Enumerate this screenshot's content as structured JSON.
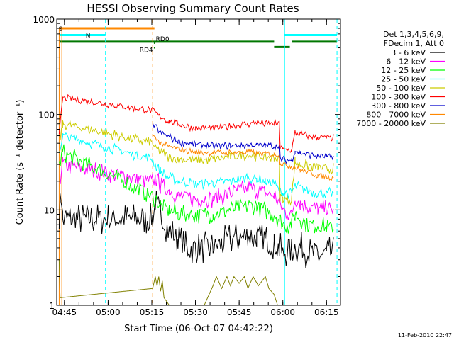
{
  "chart_data": {
    "type": "line",
    "title": "HESSI Observing Summary Count Rates",
    "xlabel": "Start Time (06-Oct-07 04:42:22)",
    "ylabel": "Count Rate (s⁻¹ detector⁻¹)",
    "yscale": "log",
    "ylim": [
      1,
      1000
    ],
    "y_ticks": [
      {
        "value": 1,
        "label": "1"
      },
      {
        "value": 10,
        "label": "10"
      },
      {
        "value": 100,
        "label": "100"
      },
      {
        "value": 1000,
        "label": "1000"
      }
    ],
    "x_ticks": [
      {
        "value": 4.75,
        "label": "04:45"
      },
      {
        "value": 5.0,
        "label": "05:00"
      },
      {
        "value": 5.25,
        "label": "05:15"
      },
      {
        "value": 5.5,
        "label": "05:30"
      },
      {
        "value": 5.75,
        "label": "05:45"
      },
      {
        "value": 6.0,
        "label": "06:00"
      },
      {
        "value": 6.25,
        "label": "06:15"
      }
    ],
    "xlim": [
      4.706,
      6.33
    ],
    "legend_header": [
      "Det 1,3,4,5,6,9,",
      "FDecim 1, Att 0"
    ],
    "legend_position": "right",
    "series": [
      {
        "name": "3 - 6 keV",
        "color": "#000000",
        "points": [
          [
            4.72,
            8
          ],
          [
            4.73,
            14
          ],
          [
            4.74,
            8
          ],
          [
            5.255,
            8
          ],
          [
            5.27,
            12
          ],
          [
            5.3,
            9
          ],
          [
            5.35,
            6
          ],
          [
            5.4,
            5
          ],
          [
            5.45,
            4
          ],
          [
            5.5,
            4
          ],
          [
            5.55,
            4
          ],
          [
            5.6,
            4
          ],
          [
            5.65,
            4.5
          ],
          [
            5.7,
            5
          ],
          [
            5.75,
            5
          ],
          [
            5.8,
            5.2
          ],
          [
            5.85,
            5
          ],
          [
            5.9,
            4.8
          ],
          [
            5.95,
            4.5
          ],
          [
            5.98,
            4
          ],
          [
            6.0,
            3.5
          ],
          [
            6.05,
            4
          ],
          [
            6.1,
            4
          ],
          [
            6.15,
            3.5
          ],
          [
            6.2,
            3.3
          ],
          [
            6.25,
            3.5
          ],
          [
            6.29,
            3.5
          ]
        ]
      },
      {
        "name": "6 - 12 keV",
        "color": "#ff00ff",
        "points": [
          [
            4.72,
            20
          ],
          [
            4.74,
            30
          ],
          [
            5.255,
            20
          ],
          [
            5.27,
            22
          ],
          [
            5.3,
            18
          ],
          [
            5.35,
            16
          ],
          [
            5.4,
            14
          ],
          [
            5.5,
            13
          ],
          [
            5.6,
            13
          ],
          [
            5.7,
            15
          ],
          [
            5.8,
            17
          ],
          [
            5.85,
            16
          ],
          [
            5.9,
            15
          ],
          [
            5.95,
            14
          ],
          [
            5.98,
            12
          ],
          [
            6.0,
            10
          ],
          [
            6.05,
            9
          ],
          [
            6.07,
            13
          ],
          [
            6.1,
            12
          ],
          [
            6.15,
            11
          ],
          [
            6.2,
            10
          ],
          [
            6.25,
            10
          ],
          [
            6.29,
            10
          ]
        ]
      },
      {
        "name": "12 - 25 keV",
        "color": "#00ff00",
        "points": [
          [
            4.72,
            30
          ],
          [
            4.74,
            40
          ],
          [
            5.255,
            14
          ],
          [
            5.27,
            13
          ],
          [
            5.3,
            11
          ],
          [
            5.35,
            10
          ],
          [
            5.4,
            9
          ],
          [
            5.5,
            9
          ],
          [
            5.6,
            9
          ],
          [
            5.7,
            10
          ],
          [
            5.8,
            11
          ],
          [
            5.85,
            11
          ],
          [
            5.9,
            10
          ],
          [
            5.95,
            9
          ],
          [
            5.98,
            8
          ],
          [
            6.0,
            7
          ],
          [
            6.05,
            7
          ],
          [
            6.07,
            9
          ],
          [
            6.1,
            8
          ],
          [
            6.15,
            7
          ],
          [
            6.2,
            7
          ],
          [
            6.25,
            6.5
          ],
          [
            6.29,
            6.5
          ]
        ]
      },
      {
        "name": "25 - 50 keV",
        "color": "#00ffff",
        "points": [
          [
            4.72,
            40
          ],
          [
            4.74,
            60
          ],
          [
            5.255,
            34
          ],
          [
            5.27,
            30
          ],
          [
            5.3,
            25
          ],
          [
            5.35,
            22
          ],
          [
            5.4,
            20
          ],
          [
            5.5,
            19
          ],
          [
            5.6,
            19
          ],
          [
            5.7,
            20
          ],
          [
            5.8,
            22
          ],
          [
            5.85,
            21
          ],
          [
            5.9,
            20
          ],
          [
            5.95,
            19
          ],
          [
            5.98,
            16
          ],
          [
            6.0,
            15
          ],
          [
            6.05,
            15
          ],
          [
            6.07,
            18
          ],
          [
            6.1,
            17
          ],
          [
            6.15,
            16
          ],
          [
            6.2,
            15
          ],
          [
            6.25,
            15
          ],
          [
            6.29,
            15
          ]
        ]
      },
      {
        "name": "50 - 100 keV",
        "color": "#cccc00",
        "points": [
          [
            4.72,
            50
          ],
          [
            4.74,
            80
          ],
          [
            5.255,
            50
          ],
          [
            5.27,
            45
          ],
          [
            5.3,
            40
          ],
          [
            5.35,
            36
          ],
          [
            5.4,
            34
          ],
          [
            5.5,
            33
          ],
          [
            5.6,
            34
          ],
          [
            5.7,
            36
          ],
          [
            5.8,
            38
          ],
          [
            5.85,
            37
          ],
          [
            5.9,
            36
          ],
          [
            5.95,
            35
          ],
          [
            5.98,
            34
          ],
          [
            5.985,
            14
          ],
          [
            6.0,
            13
          ],
          [
            6.05,
            13
          ],
          [
            6.07,
            32
          ],
          [
            6.1,
            30
          ],
          [
            6.15,
            29
          ],
          [
            6.2,
            28
          ],
          [
            6.25,
            27
          ],
          [
            6.29,
            27
          ]
        ]
      },
      {
        "name": "100 - 300 keV",
        "color": "#ff0000",
        "points": [
          [
            4.72,
            60
          ],
          [
            4.74,
            150
          ],
          [
            5.255,
            110
          ],
          [
            5.27,
            105
          ],
          [
            5.3,
            95
          ],
          [
            5.35,
            85
          ],
          [
            5.4,
            80
          ],
          [
            5.45,
            75
          ],
          [
            5.5,
            72
          ],
          [
            5.6,
            72
          ],
          [
            5.7,
            75
          ],
          [
            5.8,
            80
          ],
          [
            5.85,
            82
          ],
          [
            5.9,
            80
          ],
          [
            5.95,
            80
          ],
          [
            5.98,
            80
          ],
          [
            5.985,
            45
          ],
          [
            6.0,
            43
          ],
          [
            6.05,
            42
          ],
          [
            6.07,
            65
          ],
          [
            6.1,
            62
          ],
          [
            6.15,
            60
          ],
          [
            6.2,
            58
          ],
          [
            6.25,
            57
          ],
          [
            6.29,
            57
          ]
        ]
      },
      {
        "name": "300 - 800 keV",
        "color": "#0000cc",
        "points": [
          [
            5.255,
            80
          ],
          [
            5.27,
            75
          ],
          [
            5.3,
            65
          ],
          [
            5.35,
            58
          ],
          [
            5.4,
            52
          ],
          [
            5.45,
            50
          ],
          [
            5.5,
            48
          ],
          [
            5.6,
            47
          ],
          [
            5.7,
            47
          ],
          [
            5.8,
            48
          ],
          [
            5.85,
            48
          ],
          [
            5.9,
            47
          ],
          [
            5.95,
            47
          ],
          [
            5.98,
            47
          ],
          [
            5.985,
            35
          ],
          [
            6.0,
            34
          ],
          [
            6.05,
            33
          ],
          [
            6.07,
            42
          ],
          [
            6.1,
            40
          ],
          [
            6.15,
            38
          ],
          [
            6.2,
            37
          ],
          [
            6.25,
            36
          ],
          [
            6.29,
            36
          ]
        ]
      },
      {
        "name": "800 - 7000 keV",
        "color": "#ff8800",
        "points": [
          [
            5.255,
            60
          ],
          [
            5.27,
            57
          ],
          [
            5.3,
            50
          ],
          [
            5.35,
            46
          ],
          [
            5.4,
            44
          ],
          [
            5.45,
            42
          ],
          [
            5.5,
            40
          ],
          [
            5.6,
            40
          ],
          [
            5.7,
            40
          ],
          [
            5.8,
            40
          ],
          [
            5.9,
            39
          ],
          [
            5.95,
            38
          ],
          [
            5.98,
            38
          ],
          [
            5.985,
            31
          ],
          [
            6.0,
            30
          ],
          [
            6.05,
            29
          ],
          [
            6.07,
            28
          ],
          [
            6.1,
            26
          ],
          [
            6.15,
            25
          ],
          [
            6.2,
            23
          ],
          [
            6.25,
            22
          ],
          [
            6.29,
            22
          ]
        ]
      },
      {
        "name": "7000 - 20000 keV",
        "color": "#808000",
        "points": [
          [
            4.72,
            3
          ],
          [
            4.725,
            1.2
          ],
          [
            5.255,
            1.5
          ],
          [
            5.27,
            2
          ],
          [
            5.28,
            1.6
          ],
          [
            5.29,
            2
          ],
          [
            5.3,
            1.4
          ],
          [
            5.31,
            1.8
          ],
          [
            5.32,
            1.2
          ],
          [
            5.35,
            1
          ],
          [
            5.55,
            1
          ],
          [
            5.6,
            1.6
          ],
          [
            5.62,
            2
          ],
          [
            5.65,
            1.5
          ],
          [
            5.68,
            2
          ],
          [
            5.7,
            1.6
          ],
          [
            5.72,
            2
          ],
          [
            5.75,
            1.7
          ],
          [
            5.78,
            2
          ],
          [
            5.8,
            1.5
          ],
          [
            5.83,
            2
          ],
          [
            5.86,
            1.6
          ],
          [
            5.9,
            2
          ],
          [
            5.92,
            1.5
          ],
          [
            5.95,
            1.3
          ],
          [
            5.97,
            1
          ]
        ]
      }
    ],
    "status_bars": [
      {
        "name": "S",
        "color": "#ff8800",
        "y": 800,
        "segments": [
          [
            4.72,
            5.265
          ]
        ]
      },
      {
        "name": "N",
        "color": "#00ffff",
        "y": 680,
        "segments": [
          [
            4.72,
            4.985
          ],
          [
            6.01,
            6.31
          ]
        ]
      },
      {
        "name": "RD0",
        "color": "#007700",
        "y": 580,
        "segments": [
          [
            4.72,
            5.95
          ],
          [
            6.05,
            6.31
          ]
        ]
      },
      {
        "name": "RD4",
        "color": "#007700",
        "y": 510,
        "segments": [
          [
            5.95,
            6.04
          ]
        ]
      }
    ],
    "vlines": [
      {
        "x": 4.706,
        "color": "#00ffff",
        "style": "solid"
      },
      {
        "x": 4.985,
        "color": "#00ffff",
        "style": "dashed"
      },
      {
        "x": 5.255,
        "color": "#ff8800",
        "style": "dashed"
      },
      {
        "x": 6.01,
        "color": "#00ffff",
        "style": "solid"
      },
      {
        "x": 6.31,
        "color": "#00ffff",
        "style": "dashed"
      }
    ],
    "footer": "11-Feb-2010 22:47"
  }
}
